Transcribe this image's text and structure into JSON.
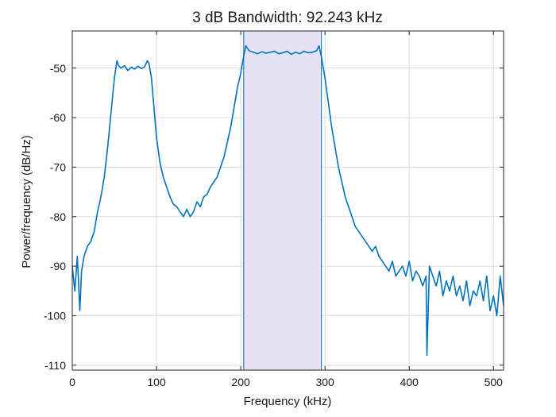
{
  "chart_data": {
    "type": "line",
    "title": "3 dB Bandwidth: 92.243 kHz",
    "xlabel": "Frequency (kHz)",
    "ylabel": "Power/frequency (dB/Hz)",
    "xlim": [
      0,
      512
    ],
    "ylim": [
      -111,
      -42.5
    ],
    "xticks": [
      0,
      100,
      200,
      300,
      400,
      500
    ],
    "yticks": [
      -110,
      -100,
      -90,
      -80,
      -70,
      -60,
      -50
    ],
    "xtick_labels": [
      "0",
      "100",
      "200",
      "300",
      "400",
      "500"
    ],
    "ytick_labels": [
      "-110",
      "-100",
      "-90",
      "-80",
      "-70",
      "-60",
      "-50"
    ],
    "grid": true,
    "bandwidth_region": {
      "x_start": 203.5,
      "x_end": 295.7
    },
    "series": [
      {
        "color": "#0072BD",
        "x": [
          0,
          3,
          6,
          9,
          11,
          14,
          18,
          22,
          26,
          30,
          34,
          38,
          42,
          46,
          50,
          53,
          55,
          58,
          62,
          66,
          70,
          74,
          78,
          82,
          86,
          89,
          91,
          94,
          97,
          100,
          104,
          108,
          112,
          116,
          120,
          124,
          128,
          132,
          136,
          140,
          144,
          148,
          152,
          156,
          160,
          164,
          168,
          172,
          176,
          180,
          184,
          188,
          192,
          196,
          200,
          203,
          206,
          210,
          215,
          220,
          225,
          230,
          235,
          240,
          245,
          250,
          255,
          260,
          265,
          270,
          275,
          280,
          285,
          290,
          293,
          296,
          300,
          304,
          308,
          312,
          316,
          320,
          324,
          328,
          332,
          336,
          340,
          344,
          348,
          352,
          356,
          360,
          364,
          368,
          372,
          376,
          380,
          384,
          388,
          392,
          396,
          400,
          404,
          408,
          412,
          416,
          420,
          421,
          424,
          428,
          432,
          436,
          440,
          444,
          448,
          452,
          456,
          460,
          464,
          468,
          472,
          476,
          480,
          484,
          488,
          492,
          496,
          500,
          504,
          508,
          512
        ],
        "y": [
          -90,
          -95,
          -88,
          -99,
          -91,
          -88,
          -86,
          -85,
          -83,
          -79,
          -76,
          -72,
          -66,
          -59,
          -52,
          -48.5,
          -49.5,
          -50,
          -49.5,
          -50.5,
          -49.8,
          -50.2,
          -49.6,
          -50.1,
          -49.7,
          -48.5,
          -49,
          -52,
          -58,
          -64,
          -69,
          -72,
          -74,
          -76,
          -77.5,
          -78,
          -79,
          -80,
          -78.5,
          -80,
          -79,
          -77,
          -78,
          -76,
          -75.5,
          -74,
          -73,
          -72,
          -70,
          -68,
          -65,
          -62,
          -58,
          -54,
          -51,
          -48,
          -45.5,
          -46.5,
          -46.8,
          -47.1,
          -46.7,
          -47,
          -46.8,
          -46.6,
          -47.1,
          -46.9,
          -46.6,
          -47.2,
          -46.8,
          -47.1,
          -46.6,
          -46.9,
          -46.8,
          -46.5,
          -45.5,
          -48,
          -52,
          -57,
          -62,
          -66,
          -70,
          -73,
          -76,
          -78,
          -80,
          -82,
          -83,
          -84,
          -85,
          -86,
          -87,
          -86,
          -88,
          -89,
          -90,
          -91,
          -89,
          -92,
          -91,
          -90,
          -92,
          -89,
          -93,
          -91,
          -92,
          -94,
          -92,
          -108,
          -90,
          -92,
          -94,
          -91,
          -96,
          -93,
          -95,
          -92,
          -96,
          -94,
          -97,
          -93,
          -98,
          -95,
          -96,
          -93,
          -97,
          -92,
          -99,
          -96,
          -100,
          -92,
          -98
        ]
      }
    ]
  }
}
